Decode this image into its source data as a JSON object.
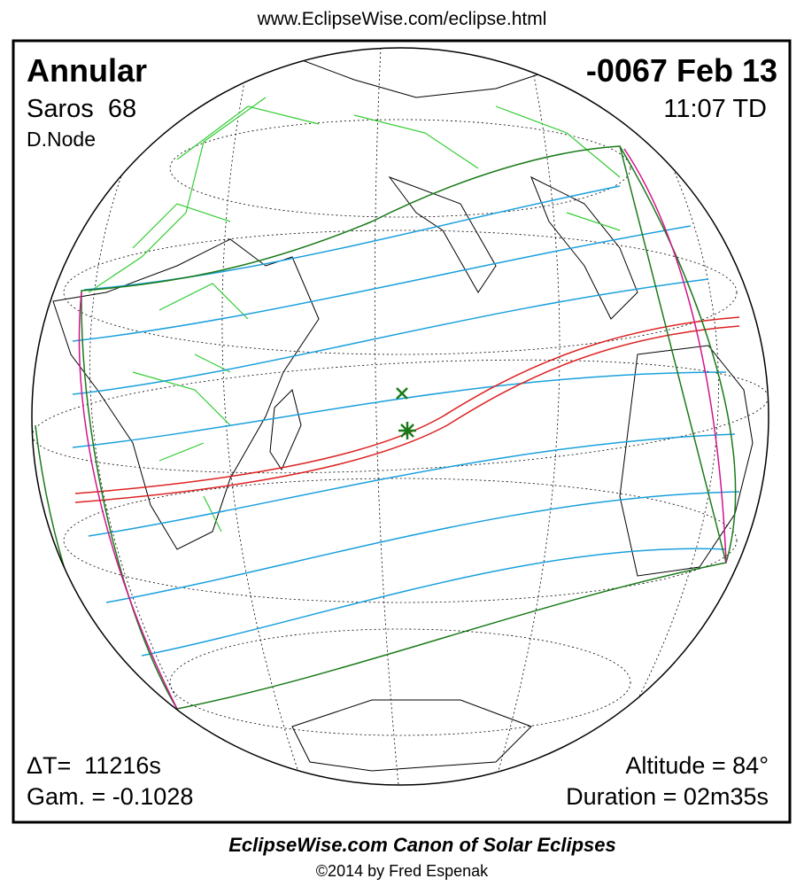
{
  "header": {
    "url": "www.EclipseWise.com/eclipse.html"
  },
  "panel": {
    "type": "Annular",
    "date": "-0067 Feb 13",
    "saros": "Saros  68",
    "time": "11:07 TD",
    "node": "D.Node",
    "delta_t": "ΔT=  11216s",
    "gamma": "Gam. = -0.1028",
    "altitude": "Altitude = 84°",
    "duration": "Duration = 02m35s"
  },
  "footer": {
    "title": "EclipseWise.com Canon of Solar Eclipses",
    "copyright": "©2014 by Fred Espenak"
  }
}
